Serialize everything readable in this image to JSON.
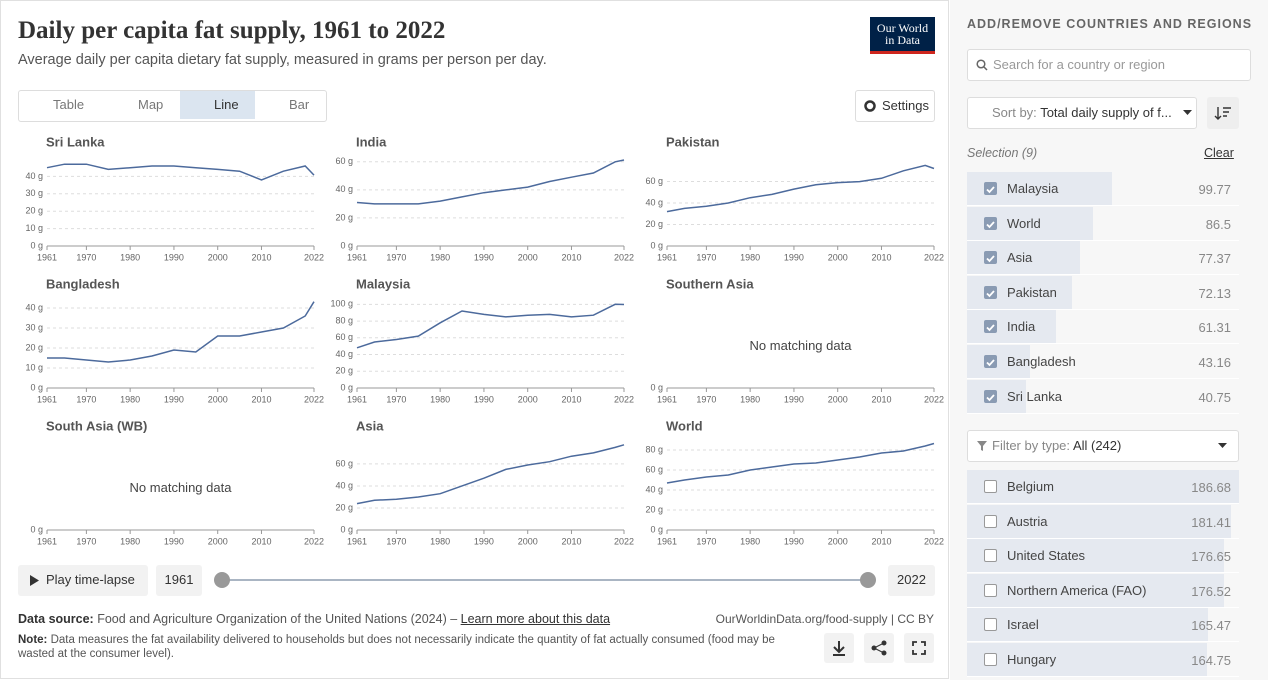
{
  "header": {
    "title": "Daily per capita fat supply, 1961 to 2022",
    "subtitle": "Average daily per capita dietary fat supply, measured in grams per person per day.",
    "logo": [
      "Our World",
      "in Data"
    ]
  },
  "tabs": [
    "Table",
    "Map",
    "Line",
    "Bar"
  ],
  "active_tab": "Line",
  "settings": "Settings",
  "chart_data": [
    {
      "type": "line",
      "title": "Sri Lanka",
      "color": "#4c6a9c",
      "xlim": [
        1961,
        2022
      ],
      "xticks": [
        1961,
        1970,
        1980,
        1990,
        2000,
        2010,
        2022
      ],
      "ylim": [
        0,
        50
      ],
      "yticks": [
        {
          "value": 0,
          "label": "0 g"
        },
        {
          "value": 10,
          "label": "10 g"
        },
        {
          "value": 20,
          "label": "20 g"
        },
        {
          "value": 30,
          "label": "30 g"
        },
        {
          "value": 40,
          "label": "40 g"
        }
      ],
      "x": [
        1961,
        1965,
        1970,
        1975,
        1980,
        1985,
        1990,
        1995,
        2000,
        2005,
        2010,
        2015,
        2020,
        2022
      ],
      "values": [
        45,
        47,
        47,
        44,
        45,
        46,
        46,
        45,
        44,
        43,
        38,
        43,
        46,
        40.75
      ]
    },
    {
      "type": "line",
      "title": "India",
      "color": "#4c6a9c",
      "xlim": [
        1961,
        2022
      ],
      "xticks": [
        1961,
        1970,
        1980,
        1990,
        2000,
        2010,
        2022
      ],
      "ylim": [
        0,
        62
      ],
      "yticks": [
        {
          "value": 0,
          "label": "0 g"
        },
        {
          "value": 20,
          "label": "20 g"
        },
        {
          "value": 40,
          "label": "40 g"
        },
        {
          "value": 60,
          "label": "60 g"
        }
      ],
      "x": [
        1961,
        1965,
        1970,
        1975,
        1980,
        1985,
        1990,
        1995,
        2000,
        2005,
        2010,
        2015,
        2020,
        2022
      ],
      "values": [
        31,
        30,
        30,
        30,
        32,
        35,
        38,
        40,
        42,
        46,
        49,
        52,
        60,
        61.31
      ]
    },
    {
      "type": "line",
      "title": "Pakistan",
      "color": "#4c6a9c",
      "xlim": [
        1961,
        2022
      ],
      "xticks": [
        1961,
        1970,
        1980,
        1990,
        2000,
        2010,
        2022
      ],
      "ylim": [
        0,
        81
      ],
      "yticks": [
        {
          "value": 0,
          "label": "0 g"
        },
        {
          "value": 20,
          "label": "20 g"
        },
        {
          "value": 40,
          "label": "40 g"
        },
        {
          "value": 60,
          "label": "60 g"
        }
      ],
      "x": [
        1961,
        1965,
        1970,
        1975,
        1980,
        1985,
        1990,
        1995,
        2000,
        2005,
        2010,
        2015,
        2020,
        2022
      ],
      "values": [
        32,
        35,
        37,
        40,
        45,
        48,
        53,
        57,
        59,
        60,
        63,
        70,
        75,
        72.13
      ]
    },
    {
      "type": "line",
      "title": "Bangladesh",
      "color": "#4c6a9c",
      "xlim": [
        1961,
        2022
      ],
      "xticks": [
        1961,
        1970,
        1980,
        1990,
        2000,
        2010,
        2022
      ],
      "ylim": [
        0,
        43.5
      ],
      "yticks": [
        {
          "value": 0,
          "label": "0 g"
        },
        {
          "value": 10,
          "label": "10 g"
        },
        {
          "value": 20,
          "label": "20 g"
        },
        {
          "value": 30,
          "label": "30 g"
        },
        {
          "value": 40,
          "label": "40 g"
        }
      ],
      "x": [
        1961,
        1965,
        1970,
        1975,
        1980,
        1985,
        1990,
        1995,
        2000,
        2005,
        2010,
        2015,
        2020,
        2022
      ],
      "values": [
        15,
        15,
        14,
        13,
        14,
        16,
        19,
        18,
        26,
        26,
        28,
        30,
        36,
        43.16
      ]
    },
    {
      "type": "line",
      "title": "Malaysia",
      "color": "#4c6a9c",
      "xlim": [
        1961,
        2022
      ],
      "xticks": [
        1961,
        1970,
        1980,
        1990,
        2000,
        2010,
        2022
      ],
      "ylim": [
        0,
        104
      ],
      "yticks": [
        {
          "value": 0,
          "label": "0 g"
        },
        {
          "value": 20,
          "label": "20 g"
        },
        {
          "value": 40,
          "label": "40 g"
        },
        {
          "value": 60,
          "label": "60 g"
        },
        {
          "value": 80,
          "label": "80 g"
        },
        {
          "value": 100,
          "label": "100 g"
        }
      ],
      "x": [
        1961,
        1965,
        1970,
        1975,
        1980,
        1985,
        1990,
        1995,
        2000,
        2005,
        2010,
        2015,
        2020,
        2022
      ],
      "values": [
        48,
        55,
        58,
        62,
        78,
        92,
        88,
        85,
        87,
        88,
        85,
        87,
        100,
        99.77
      ]
    },
    {
      "type": "line",
      "title": "Southern Asia",
      "message": "No matching data",
      "xlim": [
        1961,
        2022
      ],
      "xticks": [
        1961,
        1970,
        1980,
        1990,
        2000,
        2010,
        2022
      ],
      "ylim": [
        0,
        1
      ],
      "yticks": [
        {
          "value": 0,
          "label": "0 g"
        }
      ]
    },
    {
      "type": "line",
      "title": "South Asia (WB)",
      "message": "No matching data",
      "xlim": [
        1961,
        2022
      ],
      "xticks": [
        1961,
        1970,
        1980,
        1990,
        2000,
        2010,
        2022
      ],
      "ylim": [
        0,
        1
      ],
      "yticks": [
        {
          "value": 0,
          "label": "0 g"
        }
      ]
    },
    {
      "type": "line",
      "title": "Asia",
      "color": "#4c6a9c",
      "xlim": [
        1961,
        2022
      ],
      "xticks": [
        1961,
        1970,
        1980,
        1990,
        2000,
        2010,
        2022
      ],
      "ylim": [
        0,
        79
      ],
      "yticks": [
        {
          "value": 0,
          "label": "0 g"
        },
        {
          "value": 20,
          "label": "20 g"
        },
        {
          "value": 40,
          "label": "40 g"
        },
        {
          "value": 60,
          "label": "60 g"
        }
      ],
      "x": [
        1961,
        1965,
        1970,
        1975,
        1980,
        1985,
        1990,
        1995,
        2000,
        2005,
        2010,
        2015,
        2020,
        2022
      ],
      "values": [
        24,
        27,
        28,
        30,
        33,
        40,
        47,
        55,
        59,
        62,
        67,
        70,
        75,
        77.37
      ]
    },
    {
      "type": "line",
      "title": "World",
      "color": "#4c6a9c",
      "xlim": [
        1961,
        2022
      ],
      "xticks": [
        1961,
        1970,
        1980,
        1990,
        2000,
        2010,
        2022
      ],
      "ylim": [
        0,
        87
      ],
      "yticks": [
        {
          "value": 0,
          "label": "0 g"
        },
        {
          "value": 20,
          "label": "20 g"
        },
        {
          "value": 40,
          "label": "40 g"
        },
        {
          "value": 60,
          "label": "60 g"
        },
        {
          "value": 80,
          "label": "80 g"
        }
      ],
      "x": [
        1961,
        1965,
        1970,
        1975,
        1980,
        1985,
        1990,
        1995,
        2000,
        2005,
        2010,
        2015,
        2020,
        2022
      ],
      "values": [
        47,
        50,
        53,
        55,
        60,
        63,
        66,
        67,
        70,
        73,
        77,
        79,
        84,
        86.5
      ]
    }
  ],
  "timeline": {
    "play": "Play time-lapse",
    "start": "1961",
    "end": "2022"
  },
  "footer": {
    "source_label": "Data source:",
    "source": "Food and Agriculture Organization of the United Nations (2024) – ",
    "source_link": "Learn more about this data",
    "license": "OurWorldinData.org/food-supply | CC BY",
    "note_label": "Note:",
    "note": "Data measures the fat availability delivered to households but does not necessarily indicate the quantity of fat actually consumed (food may be wasted at the consumer level)."
  },
  "sidebar": {
    "heading": "ADD/REMOVE COUNTRIES AND REGIONS",
    "search_placeholder": "Search for a country or region",
    "sort_label": "Sort by:",
    "sort_value": "Total daily supply of f...",
    "selection": "Selection (9)",
    "clear": "Clear",
    "selected": [
      {
        "name": "Malaysia",
        "value": 99.77
      },
      {
        "name": "World",
        "value": 86.5
      },
      {
        "name": "Asia",
        "value": 77.37
      },
      {
        "name": "Pakistan",
        "value": 72.13
      },
      {
        "name": "India",
        "value": 61.31
      },
      {
        "name": "Bangladesh",
        "value": 43.16
      },
      {
        "name": "Sri Lanka",
        "value": 40.75
      }
    ],
    "filter_label": "Filter by type:",
    "filter_value": "All (242)",
    "available": [
      {
        "name": "Belgium",
        "value": 186.68
      },
      {
        "name": "Austria",
        "value": 181.41
      },
      {
        "name": "United States",
        "value": 176.65
      },
      {
        "name": "Northern America (FAO)",
        "value": 176.52
      },
      {
        "name": "Israel",
        "value": 165.47
      },
      {
        "name": "Hungary",
        "value": 164.75
      }
    ]
  }
}
